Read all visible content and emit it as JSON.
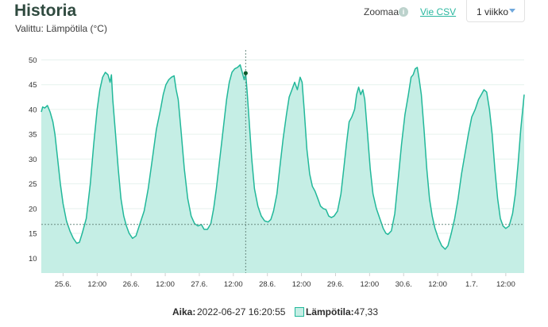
{
  "header": {
    "title": "Historia",
    "subtitle": "Valittu: Lämpötila (°C)",
    "zoom_label": "Zoomaa",
    "info_icon": "i",
    "csv_link": "Vie CSV",
    "range_select": "1 viikko"
  },
  "colors": {
    "line": "#22b89a",
    "fill": "#c5eee5",
    "grid": "#e6f2ee",
    "crosshair": "#6a8a80",
    "marker": "#0c5a2a"
  },
  "chart_data": {
    "type": "area",
    "ylim": [
      7,
      52
    ],
    "yticks": [
      10,
      15,
      20,
      25,
      30,
      35,
      40,
      45,
      50
    ],
    "xlim": [
      -0.32,
      6.77
    ],
    "xticks": [
      {
        "x": 0.0,
        "label": "25.6."
      },
      {
        "x": 0.5,
        "label": "12:00"
      },
      {
        "x": 1.0,
        "label": "26.6."
      },
      {
        "x": 1.5,
        "label": "12:00"
      },
      {
        "x": 2.0,
        "label": "27.6."
      },
      {
        "x": 2.5,
        "label": "12:00"
      },
      {
        "x": 3.0,
        "label": "28.6."
      },
      {
        "x": 3.5,
        "label": "12:00"
      },
      {
        "x": 4.0,
        "label": "29.6."
      },
      {
        "x": 4.5,
        "label": "12:00"
      },
      {
        "x": 5.0,
        "label": "30.6."
      },
      {
        "x": 5.5,
        "label": "12:00"
      },
      {
        "x": 6.0,
        "label": "1.7."
      },
      {
        "x": 6.5,
        "label": "12:00"
      }
    ],
    "crosshair": {
      "x": 2.681,
      "y": 16.8
    },
    "highlight": {
      "x": 2.681,
      "y": 47.33
    },
    "points": [
      [
        -0.32,
        39.5
      ],
      [
        -0.3,
        40.5
      ],
      [
        -0.27,
        40.3
      ],
      [
        -0.23,
        40.8
      ],
      [
        -0.19,
        39.5
      ],
      [
        -0.15,
        37.5
      ],
      [
        -0.12,
        35.0
      ],
      [
        -0.08,
        30.0
      ],
      [
        -0.04,
        25.0
      ],
      [
        0.0,
        21.0
      ],
      [
        0.05,
        17.5
      ],
      [
        0.1,
        15.5
      ],
      [
        0.15,
        14.0
      ],
      [
        0.2,
        13.0
      ],
      [
        0.24,
        13.2
      ],
      [
        0.28,
        15.0
      ],
      [
        0.34,
        18.0
      ],
      [
        0.4,
        25.0
      ],
      [
        0.45,
        33.0
      ],
      [
        0.5,
        40.0
      ],
      [
        0.54,
        44.0
      ],
      [
        0.58,
        46.5
      ],
      [
        0.62,
        47.5
      ],
      [
        0.66,
        47.0
      ],
      [
        0.69,
        45.5
      ],
      [
        0.71,
        47.0
      ],
      [
        0.73,
        42.0
      ],
      [
        0.77,
        35.0
      ],
      [
        0.81,
        28.0
      ],
      [
        0.85,
        22.0
      ],
      [
        0.89,
        18.5
      ],
      [
        0.93,
        16.5
      ],
      [
        0.97,
        15.0
      ],
      [
        1.02,
        14.0
      ],
      [
        1.07,
        14.5
      ],
      [
        1.13,
        17.0
      ],
      [
        1.19,
        19.5
      ],
      [
        1.25,
        24.0
      ],
      [
        1.31,
        30.0
      ],
      [
        1.37,
        36.0
      ],
      [
        1.43,
        40.0
      ],
      [
        1.47,
        43.0
      ],
      [
        1.51,
        45.0
      ],
      [
        1.55,
        46.0
      ],
      [
        1.59,
        46.5
      ],
      [
        1.63,
        46.8
      ],
      [
        1.66,
        44.0
      ],
      [
        1.69,
        42.0
      ],
      [
        1.73,
        36.0
      ],
      [
        1.78,
        28.0
      ],
      [
        1.83,
        22.0
      ],
      [
        1.88,
        18.5
      ],
      [
        1.93,
        17.0
      ],
      [
        1.98,
        16.5
      ],
      [
        2.03,
        16.8
      ],
      [
        2.07,
        15.8
      ],
      [
        2.12,
        15.8
      ],
      [
        2.17,
        17.0
      ],
      [
        2.21,
        20.0
      ],
      [
        2.25,
        24.0
      ],
      [
        2.3,
        30.0
      ],
      [
        2.35,
        36.0
      ],
      [
        2.4,
        42.0
      ],
      [
        2.44,
        45.5
      ],
      [
        2.48,
        47.5
      ],
      [
        2.52,
        48.2
      ],
      [
        2.56,
        48.5
      ],
      [
        2.6,
        49.0
      ],
      [
        2.63,
        47.5
      ],
      [
        2.66,
        46.0
      ],
      [
        2.68,
        47.33
      ],
      [
        2.7,
        44.0
      ],
      [
        2.73,
        38.0
      ],
      [
        2.77,
        30.0
      ],
      [
        2.81,
        24.0
      ],
      [
        2.86,
        20.5
      ],
      [
        2.91,
        18.5
      ],
      [
        2.96,
        17.5
      ],
      [
        3.01,
        17.3
      ],
      [
        3.05,
        17.8
      ],
      [
        3.09,
        19.5
      ],
      [
        3.14,
        23.0
      ],
      [
        3.18,
        28.0
      ],
      [
        3.23,
        34.0
      ],
      [
        3.28,
        39.0
      ],
      [
        3.32,
        42.5
      ],
      [
        3.36,
        44.0
      ],
      [
        3.4,
        45.5
      ],
      [
        3.44,
        44.0
      ],
      [
        3.48,
        46.5
      ],
      [
        3.51,
        45.5
      ],
      [
        3.54,
        40.0
      ],
      [
        3.58,
        32.0
      ],
      [
        3.62,
        27.0
      ],
      [
        3.66,
        24.5
      ],
      [
        3.7,
        23.5
      ],
      [
        3.74,
        22.0
      ],
      [
        3.78,
        20.5
      ],
      [
        3.82,
        20.0
      ],
      [
        3.86,
        19.8
      ],
      [
        3.9,
        18.5
      ],
      [
        3.94,
        18.2
      ],
      [
        3.98,
        18.5
      ],
      [
        4.03,
        19.5
      ],
      [
        4.08,
        23.0
      ],
      [
        4.12,
        28.0
      ],
      [
        4.16,
        33.0
      ],
      [
        4.2,
        37.5
      ],
      [
        4.24,
        38.5
      ],
      [
        4.28,
        40.0
      ],
      [
        4.31,
        43.0
      ],
      [
        4.34,
        44.5
      ],
      [
        4.37,
        43.0
      ],
      [
        4.4,
        44.0
      ],
      [
        4.43,
        42.0
      ],
      [
        4.47,
        35.0
      ],
      [
        4.51,
        28.0
      ],
      [
        4.55,
        23.0
      ],
      [
        4.6,
        20.0
      ],
      [
        4.65,
        18.0
      ],
      [
        4.7,
        16.0
      ],
      [
        4.74,
        15.0
      ],
      [
        4.77,
        14.8
      ],
      [
        4.82,
        15.5
      ],
      [
        4.87,
        19.0
      ],
      [
        4.92,
        26.0
      ],
      [
        4.97,
        33.0
      ],
      [
        5.02,
        39.0
      ],
      [
        5.07,
        43.0
      ],
      [
        5.11,
        46.5
      ],
      [
        5.14,
        47.0
      ],
      [
        5.17,
        48.2
      ],
      [
        5.2,
        48.5
      ],
      [
        5.23,
        46.0
      ],
      [
        5.26,
        43.0
      ],
      [
        5.3,
        36.0
      ],
      [
        5.34,
        28.0
      ],
      [
        5.38,
        22.0
      ],
      [
        5.42,
        18.5
      ],
      [
        5.46,
        16.0
      ],
      [
        5.51,
        14.0
      ],
      [
        5.56,
        12.5
      ],
      [
        5.61,
        11.8
      ],
      [
        5.65,
        12.5
      ],
      [
        5.7,
        15.0
      ],
      [
        5.75,
        18.0
      ],
      [
        5.8,
        22.0
      ],
      [
        5.85,
        27.0
      ],
      [
        5.9,
        31.0
      ],
      [
        5.95,
        35.0
      ],
      [
        6.0,
        38.5
      ],
      [
        6.05,
        40.0
      ],
      [
        6.1,
        42.0
      ],
      [
        6.14,
        43.0
      ],
      [
        6.18,
        44.0
      ],
      [
        6.22,
        43.5
      ],
      [
        6.26,
        40.0
      ],
      [
        6.3,
        35.0
      ],
      [
        6.34,
        28.0
      ],
      [
        6.38,
        22.0
      ],
      [
        6.42,
        18.0
      ],
      [
        6.46,
        16.5
      ],
      [
        6.5,
        16.0
      ],
      [
        6.55,
        16.5
      ],
      [
        6.6,
        19.0
      ],
      [
        6.64,
        23.0
      ],
      [
        6.68,
        29.0
      ],
      [
        6.72,
        36.0
      ],
      [
        6.77,
        43.0
      ]
    ]
  },
  "footer": {
    "time_label": "Aika:",
    "time_value": "2022-06-27 16:20:55",
    "series_label": "Lämpötila:",
    "series_value": "47,33"
  }
}
